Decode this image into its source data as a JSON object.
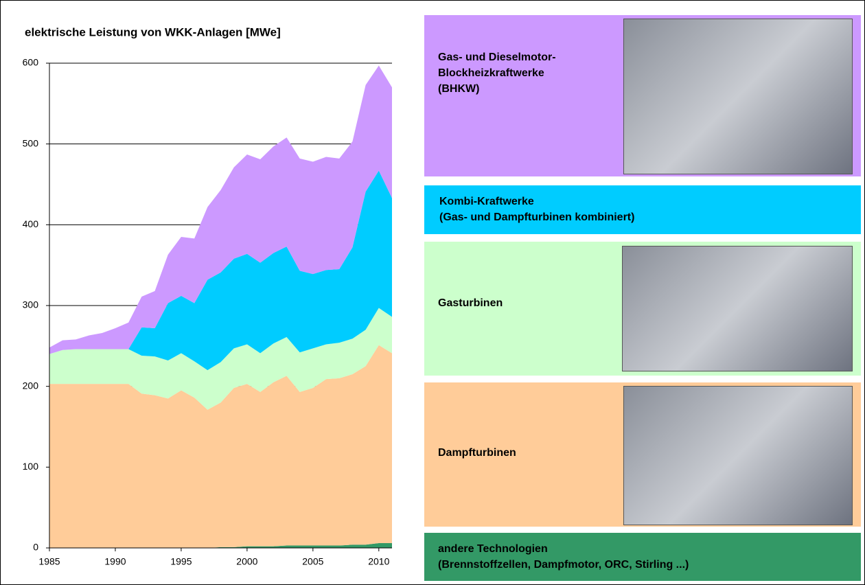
{
  "chart_data": {
    "type": "stacked-area",
    "title": "elektrische Leistung von WKK-Anlagen  [MWe]",
    "x": [
      1985,
      1986,
      1987,
      1988,
      1989,
      1990,
      1991,
      1992,
      1993,
      1994,
      1995,
      1996,
      1997,
      1998,
      1999,
      2000,
      2001,
      2002,
      2003,
      2004,
      2005,
      2006,
      2007,
      2008,
      2009,
      2010,
      2011
    ],
    "xlim": [
      1985,
      2011
    ],
    "xticks": [
      1985,
      1990,
      1995,
      2000,
      2005,
      2010
    ],
    "ylim": [
      0,
      600
    ],
    "yticks": [
      0,
      100,
      200,
      300,
      400,
      500,
      600
    ],
    "grid": true,
    "series": [
      {
        "name": "andere Technologien\n(Brennstoffzellen, Dampfmotor, ORC, Stirling ...)",
        "color": "#339966",
        "values": [
          0,
          0,
          0,
          0,
          0,
          0,
          0,
          0,
          0,
          0,
          0,
          0,
          0,
          1,
          1,
          2,
          2,
          2,
          3,
          3,
          3,
          3,
          3,
          4,
          4,
          6,
          6
        ]
      },
      {
        "name": "Dampfturbinen",
        "color": "#ffcc99",
        "values": [
          203,
          203,
          203,
          203,
          203,
          203,
          203,
          191,
          189,
          185,
          195,
          186,
          171,
          179,
          197,
          201,
          191,
          203,
          210,
          190,
          195,
          206,
          207,
          211,
          221,
          245,
          235
        ]
      },
      {
        "name": "Gasturbinen",
        "color": "#ccffcc",
        "values": [
          37,
          42,
          43,
          43,
          43,
          43,
          43,
          47,
          48,
          47,
          46,
          45,
          49,
          50,
          49,
          49,
          48,
          48,
          48,
          49,
          49,
          43,
          44,
          44,
          45,
          46,
          45
        ]
      },
      {
        "name": "Kombi-Kraftwerke\n(Gas- und Dampfturbinen kombiniert)",
        "color": "#00ccff",
        "values": [
          0,
          0,
          0,
          0,
          0,
          0,
          0,
          35,
          35,
          71,
          71,
          72,
          112,
          111,
          111,
          112,
          112,
          112,
          112,
          101,
          92,
          92,
          91,
          113,
          171,
          170,
          147
        ]
      },
      {
        "name": "Gas- und Dieselmotor-\nBlockheizkraftwerke\n(BHKW)",
        "color": "#cc99ff",
        "values": [
          8,
          12,
          12,
          17,
          20,
          26,
          33,
          38,
          46,
          60,
          73,
          80,
          90,
          102,
          113,
          123,
          128,
          132,
          135,
          139,
          139,
          140,
          137,
          131,
          132,
          130,
          137
        ]
      }
    ]
  }
}
